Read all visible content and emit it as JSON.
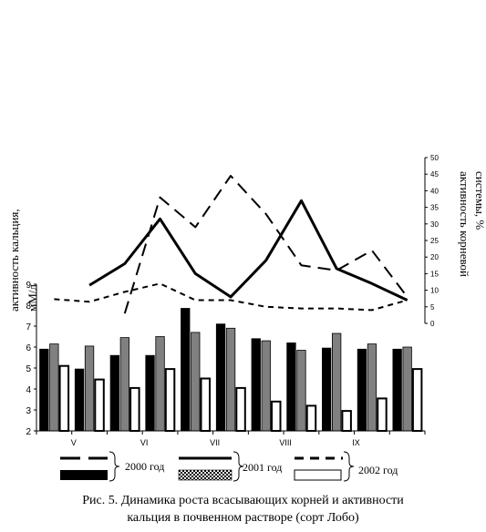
{
  "chart_data": [
    {
      "type": "bar",
      "title": "",
      "ylabel": "активность кальция, мМ/л",
      "ylim": [
        2,
        9
      ],
      "yticks": [
        "2",
        "3",
        "4",
        "5",
        "6",
        "7",
        "8",
        "9"
      ],
      "categories": [
        "",
        "V",
        "",
        "VI",
        "",
        "VII",
        "",
        "VIII",
        "",
        "IX",
        ""
      ],
      "series": [
        {
          "name": "2000 год",
          "fill": "#000000",
          "values": [
            5.9,
            4.95,
            5.6,
            5.6,
            7.85,
            7.1,
            6.4,
            6.2,
            5.95,
            5.9,
            5.9
          ]
        },
        {
          "name": "2001 год",
          "fill": "#808080",
          "values": [
            6.15,
            6.05,
            6.45,
            6.5,
            6.7,
            6.9,
            6.3,
            5.85,
            6.65,
            6.15,
            6.0
          ]
        },
        {
          "name": "2002 год",
          "fill": "#ffffff",
          "values": [
            5.1,
            4.45,
            4.05,
            4.95,
            4.5,
            4.05,
            3.4,
            3.2,
            2.95,
            3.55,
            4.95
          ]
        }
      ]
    },
    {
      "type": "line",
      "ylabel": "активность корневой системы, %",
      "ylim": [
        0,
        50
      ],
      "yticks": [
        "0",
        "5",
        "10",
        "15",
        "20",
        "25",
        "30",
        "35",
        "40",
        "45",
        "50"
      ],
      "series": [
        {
          "name": "2000 год",
          "style": "long-dash",
          "x": [
            2,
            3,
            4,
            5,
            6,
            7,
            8,
            9,
            10
          ],
          "values": [
            3,
            38,
            29,
            44.5,
            33,
            17.5,
            16,
            22,
            8
          ]
        },
        {
          "name": "2001 год",
          "style": "solid",
          "x": [
            1,
            2,
            3,
            4,
            5,
            6,
            7,
            8,
            9,
            10
          ],
          "values": [
            11.5,
            18,
            31.5,
            15,
            8,
            19,
            37,
            16.5,
            12,
            7
          ]
        },
        {
          "name": "2002 год",
          "style": "short-dash",
          "x": [
            0,
            1,
            2,
            3,
            4,
            5,
            6,
            7,
            8,
            9,
            10
          ],
          "values": [
            7.3,
            6.5,
            9.5,
            12,
            7,
            7,
            5,
            4.5,
            4.5,
            4,
            7
          ]
        }
      ]
    }
  ],
  "legend": {
    "label_2000": "2000 год",
    "label_2001": "2001 год",
    "label_2002": "2002 год"
  },
  "caption": {
    "line1": "Рис. 5. Динамика роста всасывающих корней и активности",
    "line2": "кальция в почвенном растворе (сорт Лобо)"
  },
  "axis_labels": {
    "left_line1": "активность кальция,",
    "left_line2": "мМ/л",
    "right_line1": "активность корневой",
    "right_line2": "системы, %"
  }
}
